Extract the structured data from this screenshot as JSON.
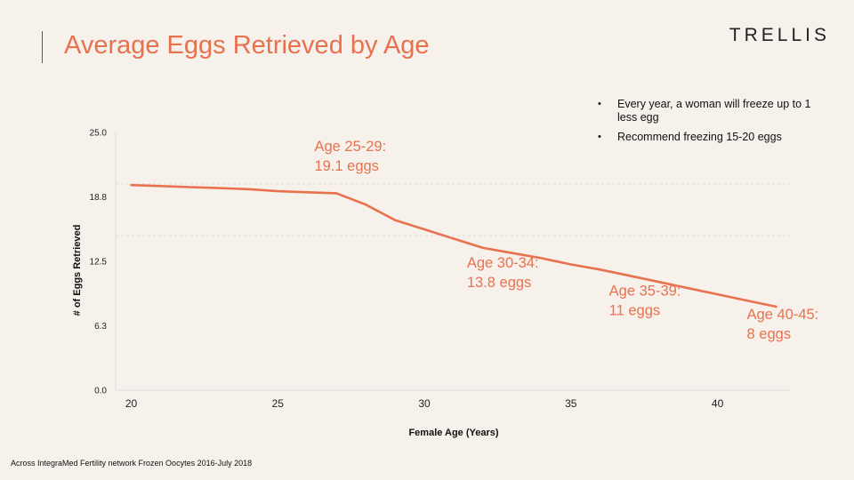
{
  "slide": {
    "title": "Average Eggs Retrieved by Age",
    "logo": "TRELLIS",
    "bullets": [
      "Every year, a woman will freeze up to 1 less egg",
      "Recommend freezing 15-20 eggs"
    ],
    "footnote": "Across IntegraMed Fertility network Frozen Oocytes 2016-July 2018"
  },
  "colors": {
    "accent": "#e8714f",
    "gridline": "#dcdcdc",
    "axis": "#e3e3e3"
  },
  "chart_data": {
    "type": "line",
    "title": "",
    "xlabel": "Female Age (Years)",
    "ylabel": "# of Eggs Retrieved",
    "xlim": [
      20,
      42
    ],
    "ylim": [
      0,
      25
    ],
    "x_ticks": [
      "20",
      "25",
      "30",
      "35",
      "40"
    ],
    "y_ticks": [
      "0.0",
      "6.3",
      "12.5",
      "18.8",
      "25.0"
    ],
    "series": [
      {
        "color": "#e8714f",
        "x": [
          20,
          21,
          22,
          23,
          24,
          25,
          26,
          27,
          28,
          29,
          30,
          31,
          32,
          33,
          34,
          35,
          36,
          37,
          38,
          39,
          40,
          41,
          42
        ],
        "y": [
          19.9,
          19.8,
          19.7,
          19.6,
          19.5,
          19.3,
          19.2,
          19.1,
          18.0,
          16.5,
          15.6,
          14.7,
          13.8,
          13.3,
          12.8,
          12.2,
          11.7,
          11.1,
          10.5,
          9.9,
          9.3,
          8.7,
          8.1
        ]
      }
    ],
    "dashed_gridlines": [
      20,
      15
    ],
    "annotations": [
      {
        "lines": [
          "Age 25-29:",
          "19.1 eggs"
        ],
        "x": 26.25,
        "y": 23.2
      },
      {
        "lines": [
          "Age 30-34:",
          "13.8 eggs"
        ],
        "x": 31.45,
        "y": 11.9
      },
      {
        "lines": [
          "Age 35-39:",
          "11 eggs"
        ],
        "x": 36.3,
        "y": 9.2
      },
      {
        "lines": [
          "Age 40-45:",
          "8 eggs"
        ],
        "x": 41.0,
        "y": 6.9
      }
    ]
  }
}
